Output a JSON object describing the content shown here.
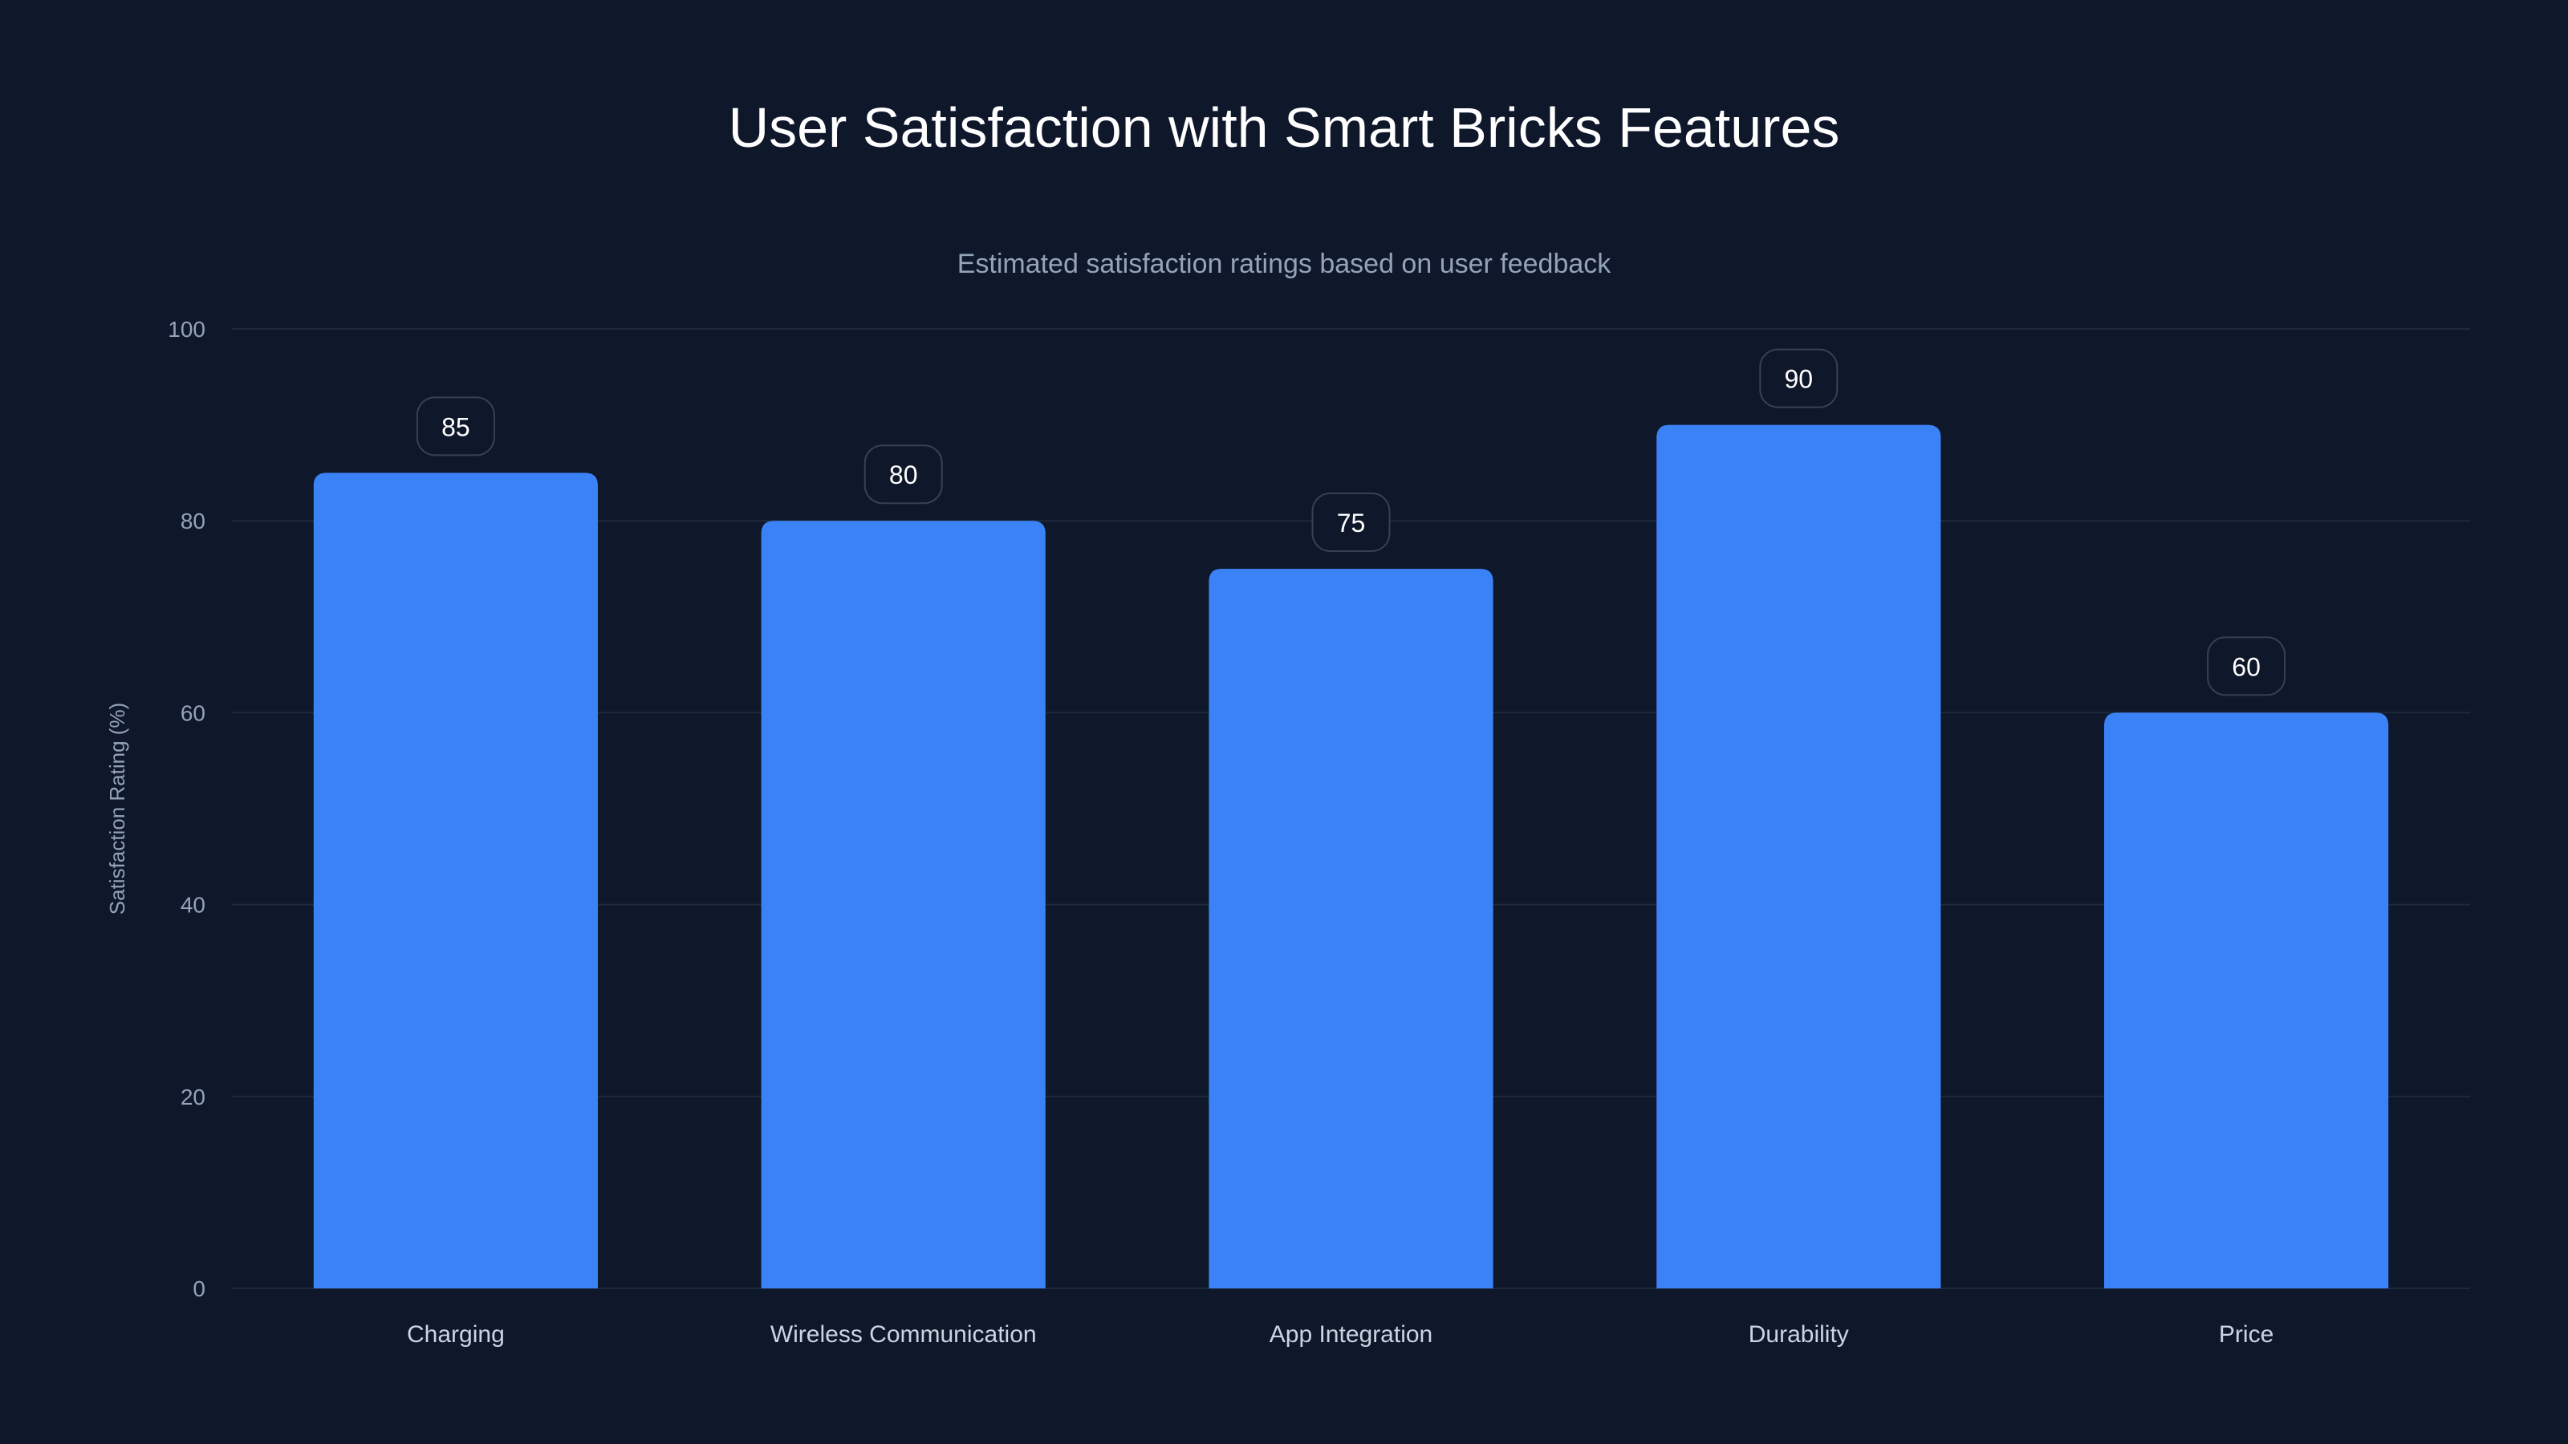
{
  "chart_data": {
    "type": "bar",
    "title": "User Satisfaction with Smart Bricks Features",
    "subtitle": "Estimated satisfaction ratings based on user feedback",
    "xlabel": "",
    "ylabel": "Satisfaction Rating (%)",
    "ylim": [
      0,
      100
    ],
    "yticks": [
      "0",
      "20",
      "40",
      "60",
      "80",
      "100"
    ],
    "grid": true,
    "categories": [
      "Charging",
      "Wireless Communication",
      "App Integration",
      "Durability",
      "Price"
    ],
    "values": [
      85,
      80,
      75,
      90,
      60
    ],
    "data_labels": [
      "85",
      "80",
      "75",
      "90",
      "60"
    ]
  },
  "colors": {
    "background": "#0f172a",
    "bar": "#3b82f6",
    "grid": "#1e293b",
    "label_border": "#374151",
    "text": "#ffffff",
    "muted": "#94a3b8"
  }
}
